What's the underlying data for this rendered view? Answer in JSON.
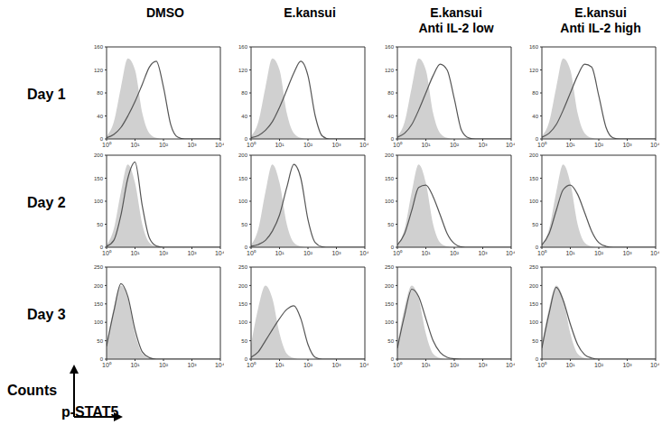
{
  "column_labels": [
    "DMSO",
    "E.kansui",
    "E.kansui\nAnti IL-2 low",
    "E.kansui\nAnti IL-2 high"
  ],
  "row_labels": [
    "Day 1",
    "Day 2",
    "Day 3"
  ],
  "x_label": "p-STAT5",
  "y_label": "Counts",
  "chart_data": [
    {
      "type": "area",
      "log": "x",
      "xlim": [
        1,
        10000
      ],
      "xticks": [
        {
          "value": 1,
          "label": "10⁰"
        },
        {
          "value": 10,
          "label": "10¹"
        },
        {
          "value": 100,
          "label": "10²"
        },
        {
          "value": 1000,
          "label": "10³"
        },
        {
          "value": 10000,
          "label": "10⁴"
        }
      ],
      "ylim": [
        0,
        160
      ],
      "yticks": [
        0,
        40,
        80,
        120,
        160
      ],
      "x": [
        1,
        1.8,
        3.2,
        5.6,
        10,
        18,
        32,
        56,
        100,
        180,
        320,
        560,
        1000,
        1800,
        3200,
        5600,
        10000
      ],
      "series": [
        {
          "type": "area",
          "color": "#d0d0d0",
          "values": [
            5,
            30,
            90,
            140,
            120,
            45,
            10,
            2,
            0,
            0,
            0,
            0,
            0,
            0,
            0,
            0,
            0
          ]
        },
        {
          "type": "line",
          "color": "#555555",
          "values": [
            2,
            8,
            20,
            40,
            65,
            95,
            125,
            135,
            90,
            25,
            3,
            0,
            0,
            0,
            0,
            0,
            0
          ]
        }
      ]
    },
    {
      "type": "area",
      "log": "x",
      "xlim": [
        1,
        10000
      ],
      "xticks": [
        {
          "value": 1,
          "label": "10⁰"
        },
        {
          "value": 10,
          "label": "10¹"
        },
        {
          "value": 100,
          "label": "10²"
        },
        {
          "value": 1000,
          "label": "10³"
        },
        {
          "value": 10000,
          "label": "10⁴"
        }
      ],
      "ylim": [
        0,
        160
      ],
      "yticks": [
        0,
        40,
        80,
        120,
        160
      ],
      "x": [
        1,
        1.8,
        3.2,
        5.6,
        10,
        18,
        32,
        56,
        100,
        180,
        320,
        560,
        1000,
        1800,
        3200,
        5600,
        10000
      ],
      "series": [
        {
          "type": "area",
          "color": "#d0d0d0",
          "values": [
            5,
            30,
            90,
            140,
            120,
            45,
            10,
            2,
            0,
            0,
            0,
            0,
            0,
            0,
            0,
            0,
            0
          ]
        },
        {
          "type": "line",
          "color": "#555555",
          "values": [
            2,
            6,
            15,
            30,
            55,
            85,
            115,
            135,
            110,
            40,
            5,
            0,
            0,
            0,
            0,
            0,
            0
          ]
        }
      ]
    },
    {
      "type": "area",
      "log": "x",
      "xlim": [
        1,
        10000
      ],
      "xticks": [
        {
          "value": 1,
          "label": "10⁰"
        },
        {
          "value": 10,
          "label": "10¹"
        },
        {
          "value": 100,
          "label": "10²"
        },
        {
          "value": 1000,
          "label": "10³"
        },
        {
          "value": 10000,
          "label": "10⁴"
        }
      ],
      "ylim": [
        0,
        160
      ],
      "yticks": [
        0,
        40,
        80,
        120,
        160
      ],
      "x": [
        1,
        1.8,
        3.2,
        5.6,
        10,
        18,
        32,
        56,
        100,
        180,
        320,
        560,
        1000,
        1800,
        3200,
        5600,
        10000
      ],
      "series": [
        {
          "type": "area",
          "color": "#d0d0d0",
          "values": [
            5,
            30,
            90,
            140,
            120,
            45,
            10,
            2,
            0,
            0,
            0,
            0,
            0,
            0,
            0,
            0,
            0
          ]
        },
        {
          "type": "line",
          "color": "#555555",
          "values": [
            3,
            10,
            25,
            50,
            80,
            110,
            130,
            120,
            70,
            15,
            2,
            0,
            0,
            0,
            0,
            0,
            0
          ]
        }
      ]
    },
    {
      "type": "area",
      "log": "x",
      "xlim": [
        1,
        10000
      ],
      "xticks": [
        {
          "value": 1,
          "label": "10⁰"
        },
        {
          "value": 10,
          "label": "10¹"
        },
        {
          "value": 100,
          "label": "10²"
        },
        {
          "value": 1000,
          "label": "10³"
        },
        {
          "value": 10000,
          "label": "10⁴"
        }
      ],
      "ylim": [
        0,
        160
      ],
      "yticks": [
        0,
        40,
        80,
        120,
        160
      ],
      "x": [
        1,
        1.8,
        3.2,
        5.6,
        10,
        18,
        32,
        56,
        100,
        180,
        320,
        560,
        1000,
        1800,
        3200,
        5600,
        10000
      ],
      "series": [
        {
          "type": "area",
          "color": "#d0d0d0",
          "values": [
            5,
            30,
            90,
            140,
            120,
            45,
            10,
            2,
            0,
            0,
            0,
            0,
            0,
            0,
            0,
            0,
            0
          ]
        },
        {
          "type": "line",
          "color": "#555555",
          "values": [
            3,
            10,
            25,
            50,
            80,
            110,
            130,
            125,
            75,
            20,
            2,
            0,
            0,
            0,
            0,
            0,
            0
          ]
        }
      ]
    },
    {
      "type": "area",
      "log": "x",
      "xlim": [
        1,
        10000
      ],
      "xticks": [
        {
          "value": 1,
          "label": "10⁰"
        },
        {
          "value": 10,
          "label": "10¹"
        },
        {
          "value": 100,
          "label": "10²"
        },
        {
          "value": 1000,
          "label": "10³"
        },
        {
          "value": 10000,
          "label": "10⁴"
        }
      ],
      "ylim": [
        0,
        200
      ],
      "yticks": [
        0,
        50,
        100,
        150,
        200
      ],
      "x": [
        1,
        1.8,
        3.2,
        5.6,
        10,
        18,
        32,
        56,
        100,
        180,
        320,
        560,
        1000,
        1800,
        3200,
        5600,
        10000
      ],
      "series": [
        {
          "type": "area",
          "color": "#d0d0d0",
          "values": [
            5,
            40,
            120,
            180,
            140,
            50,
            10,
            2,
            0,
            0,
            0,
            0,
            0,
            0,
            0,
            0,
            0
          ]
        },
        {
          "type": "line",
          "color": "#555555",
          "values": [
            2,
            15,
            70,
            150,
            185,
            90,
            20,
            3,
            0,
            0,
            0,
            0,
            0,
            0,
            0,
            0,
            0
          ]
        }
      ]
    },
    {
      "type": "area",
      "log": "x",
      "xlim": [
        1,
        10000
      ],
      "xticks": [
        {
          "value": 1,
          "label": "10⁰"
        },
        {
          "value": 10,
          "label": "10¹"
        },
        {
          "value": 100,
          "label": "10²"
        },
        {
          "value": 1000,
          "label": "10³"
        },
        {
          "value": 10000,
          "label": "10⁴"
        }
      ],
      "ylim": [
        0,
        200
      ],
      "yticks": [
        0,
        50,
        100,
        150,
        200
      ],
      "x": [
        1,
        1.8,
        3.2,
        5.6,
        10,
        18,
        32,
        56,
        100,
        180,
        320,
        560,
        1000,
        1800,
        3200,
        5600,
        10000
      ],
      "series": [
        {
          "type": "area",
          "color": "#d0d0d0",
          "values": [
            5,
            40,
            120,
            180,
            140,
            50,
            10,
            2,
            0,
            0,
            0,
            0,
            0,
            0,
            0,
            0,
            0
          ]
        },
        {
          "type": "line",
          "color": "#555555",
          "values": [
            2,
            6,
            15,
            35,
            70,
            130,
            180,
            150,
            60,
            10,
            1,
            0,
            0,
            0,
            0,
            0,
            0
          ]
        }
      ]
    },
    {
      "type": "area",
      "log": "x",
      "xlim": [
        1,
        10000
      ],
      "xticks": [
        {
          "value": 1,
          "label": "10⁰"
        },
        {
          "value": 10,
          "label": "10¹"
        },
        {
          "value": 100,
          "label": "10²"
        },
        {
          "value": 1000,
          "label": "10³"
        },
        {
          "value": 10000,
          "label": "10⁴"
        }
      ],
      "ylim": [
        0,
        200
      ],
      "yticks": [
        0,
        50,
        100,
        150,
        200
      ],
      "x": [
        1,
        1.8,
        3.2,
        5.6,
        10,
        18,
        32,
        56,
        100,
        180,
        320,
        560,
        1000,
        1800,
        3200,
        5600,
        10000
      ],
      "series": [
        {
          "type": "area",
          "color": "#d0d0d0",
          "values": [
            5,
            40,
            120,
            180,
            140,
            50,
            10,
            2,
            0,
            0,
            0,
            0,
            0,
            0,
            0,
            0,
            0
          ]
        },
        {
          "type": "line",
          "color": "#555555",
          "values": [
            5,
            30,
            80,
            130,
            135,
            110,
            70,
            30,
            8,
            1,
            0,
            0,
            0,
            0,
            0,
            0,
            0
          ]
        }
      ]
    },
    {
      "type": "area",
      "log": "x",
      "xlim": [
        1,
        10000
      ],
      "xticks": [
        {
          "value": 1,
          "label": "10⁰"
        },
        {
          "value": 10,
          "label": "10¹"
        },
        {
          "value": 100,
          "label": "10²"
        },
        {
          "value": 1000,
          "label": "10³"
        },
        {
          "value": 10000,
          "label": "10⁴"
        }
      ],
      "ylim": [
        0,
        200
      ],
      "yticks": [
        0,
        50,
        100,
        150,
        200
      ],
      "x": [
        1,
        1.8,
        3.2,
        5.6,
        10,
        18,
        32,
        56,
        100,
        180,
        320,
        560,
        1000,
        1800,
        3200,
        5600,
        10000
      ],
      "series": [
        {
          "type": "area",
          "color": "#d0d0d0",
          "values": [
            5,
            40,
            120,
            180,
            140,
            50,
            10,
            2,
            0,
            0,
            0,
            0,
            0,
            0,
            0,
            0,
            0
          ]
        },
        {
          "type": "line",
          "color": "#555555",
          "values": [
            5,
            30,
            80,
            125,
            135,
            115,
            75,
            35,
            10,
            2,
            0,
            0,
            0,
            0,
            0,
            0,
            0
          ]
        }
      ]
    },
    {
      "type": "area",
      "log": "x",
      "xlim": [
        1,
        10000
      ],
      "xticks": [
        {
          "value": 1,
          "label": "10⁰"
        },
        {
          "value": 10,
          "label": "10¹"
        },
        {
          "value": 100,
          "label": "10²"
        },
        {
          "value": 1000,
          "label": "10³"
        },
        {
          "value": 10000,
          "label": "10⁴"
        }
      ],
      "ylim": [
        0,
        250
      ],
      "yticks": [
        0,
        50,
        100,
        150,
        200,
        250
      ],
      "x": [
        1,
        1.8,
        3.2,
        5.6,
        10,
        18,
        32,
        56,
        100,
        180,
        320,
        560,
        1000,
        1800,
        3200,
        5600,
        10000
      ],
      "series": [
        {
          "type": "area",
          "color": "#d0d0d0",
          "values": [
            40,
            140,
            200,
            165,
            70,
            15,
            3,
            0,
            0,
            0,
            0,
            0,
            0,
            0,
            0,
            0,
            0
          ]
        },
        {
          "type": "line",
          "color": "#555555",
          "values": [
            35,
            130,
            205,
            170,
            80,
            20,
            4,
            0,
            0,
            0,
            0,
            0,
            0,
            0,
            0,
            0,
            0
          ]
        }
      ]
    },
    {
      "type": "area",
      "log": "x",
      "xlim": [
        1,
        10000
      ],
      "xticks": [
        {
          "value": 1,
          "label": "10⁰"
        },
        {
          "value": 10,
          "label": "10¹"
        },
        {
          "value": 100,
          "label": "10²"
        },
        {
          "value": 1000,
          "label": "10³"
        },
        {
          "value": 10000,
          "label": "10⁴"
        }
      ],
      "ylim": [
        0,
        250
      ],
      "yticks": [
        0,
        50,
        100,
        150,
        200,
        250
      ],
      "x": [
        1,
        1.8,
        3.2,
        5.6,
        10,
        18,
        32,
        56,
        100,
        180,
        320,
        560,
        1000,
        1800,
        3200,
        5600,
        10000
      ],
      "series": [
        {
          "type": "area",
          "color": "#d0d0d0",
          "values": [
            40,
            140,
            200,
            165,
            70,
            15,
            3,
            0,
            0,
            0,
            0,
            0,
            0,
            0,
            0,
            0,
            0
          ]
        },
        {
          "type": "line",
          "color": "#555555",
          "values": [
            5,
            20,
            50,
            80,
            110,
            135,
            145,
            110,
            40,
            5,
            0,
            0,
            0,
            0,
            0,
            0,
            0
          ]
        }
      ]
    },
    {
      "type": "area",
      "log": "x",
      "xlim": [
        1,
        10000
      ],
      "xticks": [
        {
          "value": 1,
          "label": "10⁰"
        },
        {
          "value": 10,
          "label": "10¹"
        },
        {
          "value": 100,
          "label": "10²"
        },
        {
          "value": 1000,
          "label": "10³"
        },
        {
          "value": 10000,
          "label": "10⁴"
        }
      ],
      "ylim": [
        0,
        250
      ],
      "yticks": [
        0,
        50,
        100,
        150,
        200,
        250
      ],
      "x": [
        1,
        1.8,
        3.2,
        5.6,
        10,
        18,
        32,
        56,
        100,
        180,
        320,
        560,
        1000,
        1800,
        3200,
        5600,
        10000
      ],
      "series": [
        {
          "type": "area",
          "color": "#d0d0d0",
          "values": [
            40,
            140,
            200,
            165,
            70,
            15,
            3,
            0,
            0,
            0,
            0,
            0,
            0,
            0,
            0,
            0,
            0
          ]
        },
        {
          "type": "line",
          "color": "#555555",
          "values": [
            30,
            120,
            190,
            170,
            110,
            50,
            18,
            5,
            1,
            0,
            0,
            0,
            0,
            0,
            0,
            0,
            0
          ]
        }
      ]
    },
    {
      "type": "area",
      "log": "x",
      "xlim": [
        1,
        10000
      ],
      "xticks": [
        {
          "value": 1,
          "label": "10⁰"
        },
        {
          "value": 10,
          "label": "10¹"
        },
        {
          "value": 100,
          "label": "10²"
        },
        {
          "value": 1000,
          "label": "10³"
        },
        {
          "value": 10000,
          "label": "10⁴"
        }
      ],
      "ylim": [
        0,
        250
      ],
      "yticks": [
        0,
        50,
        100,
        150,
        200,
        250
      ],
      "x": [
        1,
        1.8,
        3.2,
        5.6,
        10,
        18,
        32,
        56,
        100,
        180,
        320,
        560,
        1000,
        1800,
        3200,
        5600,
        10000
      ],
      "series": [
        {
          "type": "area",
          "color": "#d0d0d0",
          "values": [
            40,
            140,
            200,
            165,
            70,
            15,
            3,
            0,
            0,
            0,
            0,
            0,
            0,
            0,
            0,
            0,
            0
          ]
        },
        {
          "type": "line",
          "color": "#555555",
          "values": [
            30,
            125,
            195,
            160,
            95,
            40,
            12,
            3,
            0,
            0,
            0,
            0,
            0,
            0,
            0,
            0,
            0
          ]
        }
      ]
    }
  ]
}
